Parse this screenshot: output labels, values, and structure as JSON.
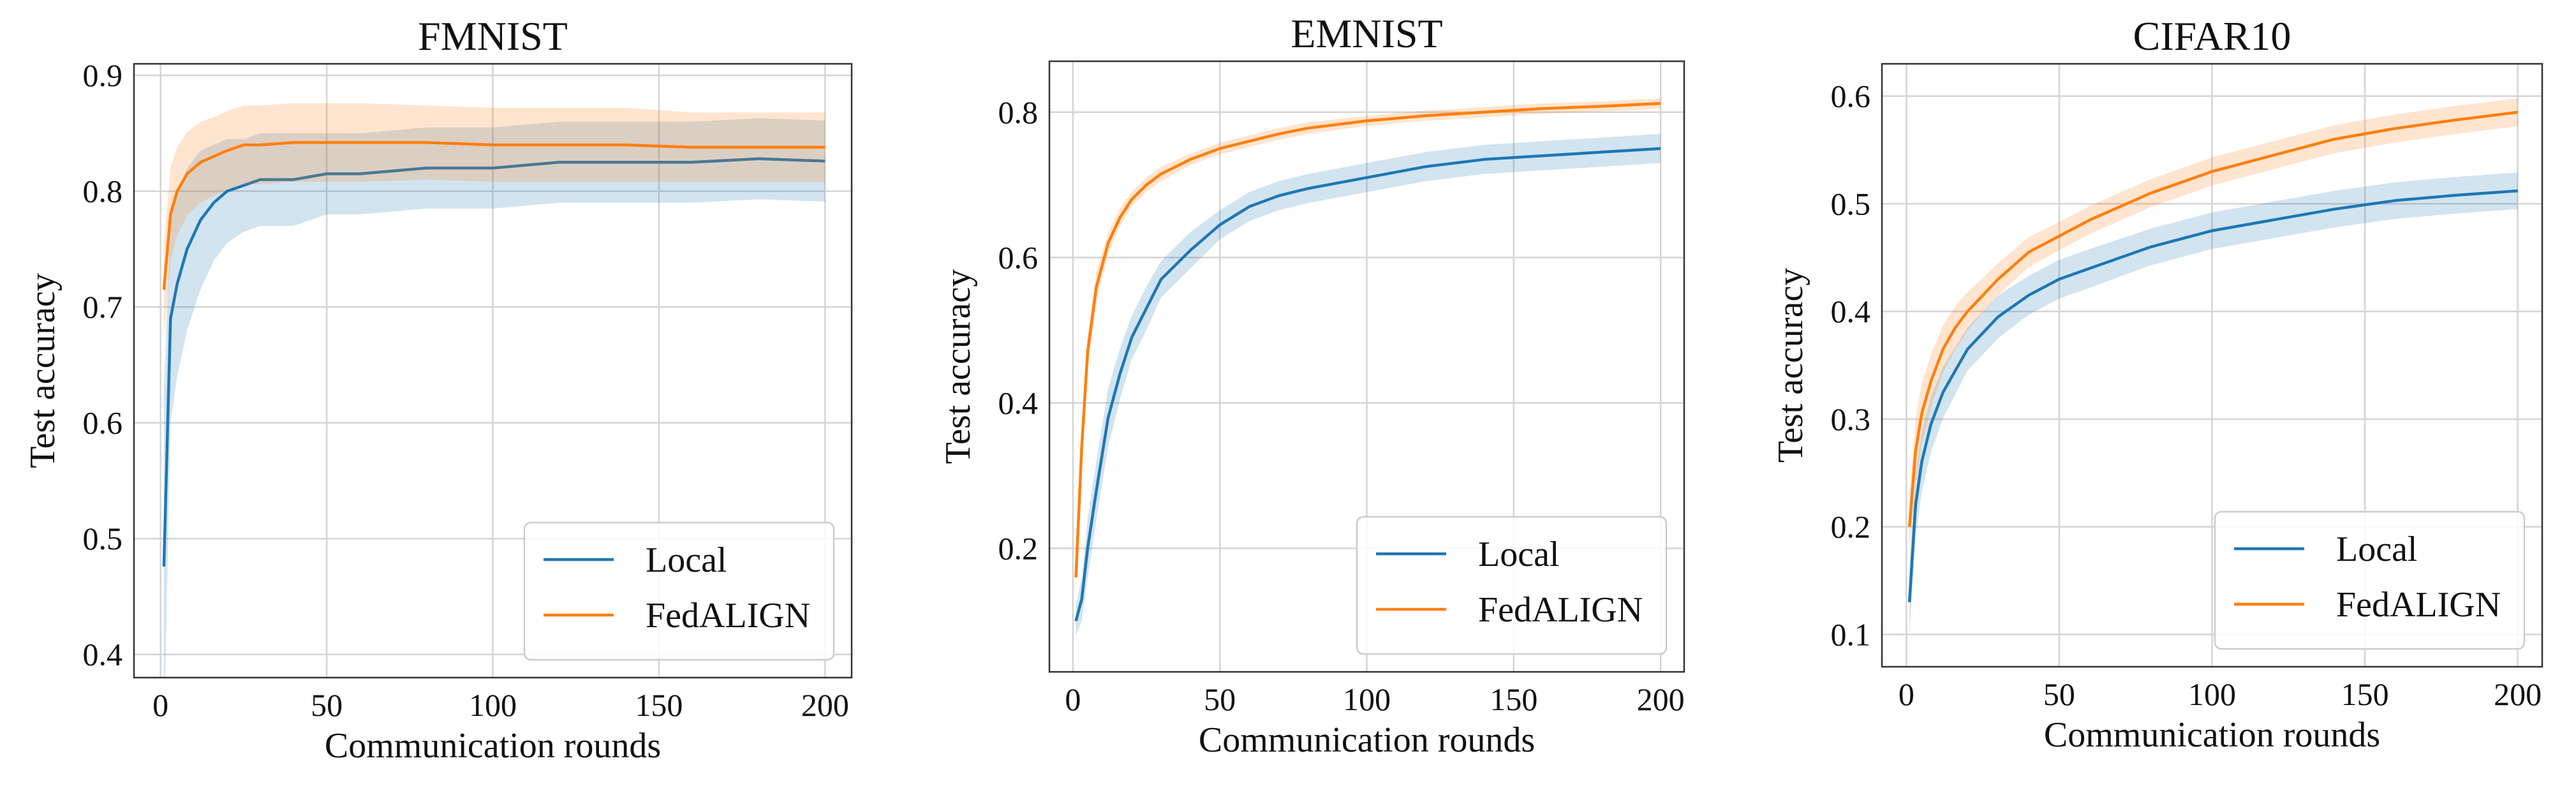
{
  "colors": {
    "local": "#1f77b4",
    "fedalign": "#ff7f0e"
  },
  "chart_data": [
    {
      "type": "line",
      "title": "FMNIST",
      "xlabel": "Communication rounds",
      "ylabel": "Test accuracy",
      "xlim": [
        -8,
        208
      ],
      "ylim": [
        0.38,
        0.91
      ],
      "xticks": [
        0,
        50,
        100,
        150,
        200
      ],
      "xtick_labels": [
        "0",
        "50",
        "100",
        "150",
        "200"
      ],
      "yticks": [
        0.4,
        0.5,
        0.6,
        0.7,
        0.8,
        0.9
      ],
      "ytick_labels": [
        "0.4",
        "0.5",
        "0.6",
        "0.7",
        "0.8",
        "0.9"
      ],
      "grid": true,
      "legend_position": "bottom-right",
      "series": [
        {
          "name": "Local",
          "x": [
            1,
            3,
            5,
            8,
            12,
            16,
            20,
            25,
            30,
            40,
            50,
            60,
            80,
            100,
            120,
            140,
            160,
            180,
            200
          ],
          "y": [
            0.476,
            0.69,
            0.72,
            0.75,
            0.775,
            0.79,
            0.8,
            0.805,
            0.81,
            0.81,
            0.815,
            0.815,
            0.82,
            0.82,
            0.825,
            0.825,
            0.825,
            0.828,
            0.826
          ],
          "band": [
            0.15,
            0.09,
            0.08,
            0.07,
            0.06,
            0.05,
            0.045,
            0.04,
            0.04,
            0.04,
            0.035,
            0.035,
            0.035,
            0.035,
            0.035,
            0.035,
            0.035,
            0.035,
            0.035
          ]
        },
        {
          "name": "FedALIGN",
          "x": [
            1,
            3,
            5,
            8,
            12,
            16,
            20,
            25,
            30,
            40,
            50,
            60,
            80,
            100,
            120,
            140,
            160,
            180,
            200
          ],
          "y": [
            0.715,
            0.78,
            0.8,
            0.815,
            0.825,
            0.83,
            0.835,
            0.84,
            0.84,
            0.842,
            0.842,
            0.842,
            0.842,
            0.84,
            0.84,
            0.84,
            0.838,
            0.838,
            0.838
          ],
          "band": [
            0.04,
            0.04,
            0.038,
            0.036,
            0.035,
            0.034,
            0.034,
            0.034,
            0.034,
            0.034,
            0.034,
            0.034,
            0.032,
            0.032,
            0.032,
            0.032,
            0.03,
            0.03,
            0.03
          ]
        }
      ]
    },
    {
      "type": "line",
      "title": "EMNIST",
      "xlabel": "Communication rounds",
      "ylabel": "Test accuracy",
      "xlim": [
        -8,
        208
      ],
      "ylim": [
        0.03,
        0.87
      ],
      "xticks": [
        0,
        50,
        100,
        150,
        200
      ],
      "xtick_labels": [
        "0",
        "50",
        "100",
        "150",
        "200"
      ],
      "yticks": [
        0.2,
        0.4,
        0.6,
        0.8
      ],
      "ytick_labels": [
        "0.2",
        "0.4",
        "0.6",
        "0.8"
      ],
      "grid": true,
      "legend_position": "bottom-right",
      "series": [
        {
          "name": "Local",
          "x": [
            1,
            3,
            5,
            8,
            12,
            16,
            20,
            25,
            30,
            40,
            50,
            60,
            70,
            80,
            100,
            120,
            140,
            160,
            180,
            200
          ],
          "y": [
            0.1,
            0.13,
            0.2,
            0.28,
            0.38,
            0.44,
            0.49,
            0.53,
            0.57,
            0.61,
            0.645,
            0.67,
            0.685,
            0.695,
            0.71,
            0.725,
            0.735,
            0.74,
            0.745,
            0.75
          ],
          "band": [
            0.02,
            0.03,
            0.04,
            0.04,
            0.04,
            0.035,
            0.03,
            0.03,
            0.025,
            0.025,
            0.02,
            0.02,
            0.02,
            0.02,
            0.02,
            0.02,
            0.02,
            0.02,
            0.02,
            0.02
          ]
        },
        {
          "name": "FedALIGN",
          "x": [
            1,
            3,
            5,
            8,
            12,
            16,
            20,
            25,
            30,
            40,
            50,
            60,
            70,
            80,
            100,
            120,
            140,
            160,
            180,
            200
          ],
          "y": [
            0.16,
            0.34,
            0.47,
            0.56,
            0.62,
            0.655,
            0.68,
            0.7,
            0.715,
            0.735,
            0.75,
            0.76,
            0.77,
            0.778,
            0.788,
            0.795,
            0.8,
            0.805,
            0.808,
            0.812
          ],
          "band": [
            0.02,
            0.03,
            0.025,
            0.02,
            0.015,
            0.012,
            0.01,
            0.01,
            0.01,
            0.008,
            0.008,
            0.008,
            0.008,
            0.008,
            0.007,
            0.007,
            0.007,
            0.007,
            0.007,
            0.007
          ]
        }
      ]
    },
    {
      "type": "line",
      "title": "CIFAR10",
      "xlabel": "Communication rounds",
      "ylabel": "Test accuracy",
      "xlim": [
        -8,
        208
      ],
      "ylim": [
        0.07,
        0.63
      ],
      "xticks": [
        0,
        50,
        100,
        150,
        200
      ],
      "xtick_labels": [
        "0",
        "50",
        "100",
        "150",
        "200"
      ],
      "yticks": [
        0.1,
        0.2,
        0.3,
        0.4,
        0.5,
        0.6
      ],
      "ytick_labels": [
        "0.1",
        "0.2",
        "0.3",
        "0.4",
        "0.5",
        "0.6"
      ],
      "grid": true,
      "legend_position": "bottom-right",
      "series": [
        {
          "name": "Local",
          "x": [
            1,
            3,
            5,
            8,
            12,
            16,
            20,
            25,
            30,
            40,
            50,
            60,
            80,
            100,
            120,
            140,
            160,
            180,
            200
          ],
          "y": [
            0.13,
            0.22,
            0.26,
            0.295,
            0.325,
            0.345,
            0.365,
            0.38,
            0.395,
            0.415,
            0.43,
            0.44,
            0.46,
            0.475,
            0.485,
            0.495,
            0.503,
            0.508,
            0.512
          ],
          "band": [
            0.03,
            0.03,
            0.028,
            0.026,
            0.024,
            0.022,
            0.02,
            0.02,
            0.02,
            0.018,
            0.018,
            0.018,
            0.017,
            0.017,
            0.017,
            0.017,
            0.017,
            0.017,
            0.017
          ]
        },
        {
          "name": "FedALIGN",
          "x": [
            1,
            3,
            5,
            8,
            12,
            16,
            20,
            25,
            30,
            40,
            50,
            60,
            80,
            100,
            120,
            140,
            160,
            180,
            200
          ],
          "y": [
            0.2,
            0.27,
            0.305,
            0.335,
            0.365,
            0.385,
            0.4,
            0.415,
            0.43,
            0.455,
            0.47,
            0.485,
            0.51,
            0.53,
            0.545,
            0.56,
            0.57,
            0.578,
            0.585
          ],
          "band": [
            0.03,
            0.03,
            0.028,
            0.025,
            0.022,
            0.02,
            0.018,
            0.016,
            0.015,
            0.014,
            0.013,
            0.013,
            0.013,
            0.013,
            0.013,
            0.013,
            0.013,
            0.013,
            0.013
          ]
        }
      ]
    }
  ]
}
